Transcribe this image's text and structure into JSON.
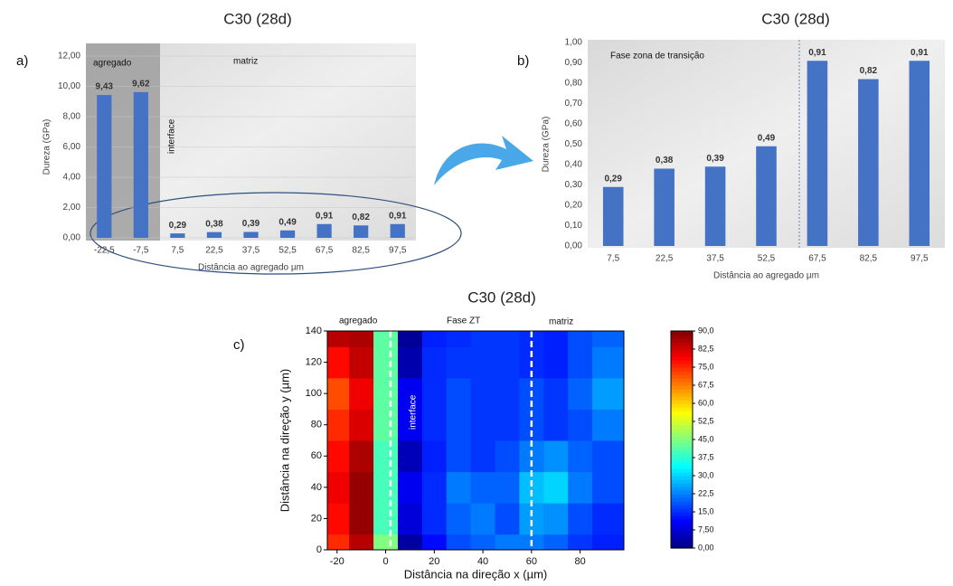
{
  "chart_data": [
    {
      "type": "bar",
      "panel": "a)",
      "title": "C30 (28d)",
      "categories": [
        "-22,5",
        "-7,5",
        "7,5",
        "22,5",
        "37,5",
        "52,5",
        "67,5",
        "82,5",
        "97,5"
      ],
      "values": [
        9.43,
        9.62,
        0.29,
        0.38,
        0.39,
        0.49,
        0.91,
        0.82,
        0.91
      ],
      "value_labels": [
        "9,43",
        "9,62",
        "0,29",
        "0,38",
        "0,39",
        "0,49",
        "0,91",
        "0,82",
        "0,91"
      ],
      "color": "#4472c4",
      "ylim": [
        0,
        12
      ],
      "yticks": [
        {
          "value": 0,
          "label": "0,00"
        },
        {
          "value": 2,
          "label": "2,00"
        },
        {
          "value": 4,
          "label": "4,00"
        },
        {
          "value": 6,
          "label": "6,00"
        },
        {
          "value": 8,
          "label": "8,00"
        },
        {
          "value": 10,
          "label": "10,00"
        },
        {
          "value": 12,
          "label": "12,00"
        }
      ],
      "y_label": "Dureza (GPa)",
      "x_label": "Distância ao agregado µm",
      "labels": [
        "agregado",
        "matriz",
        "interface"
      ],
      "grid": true
    },
    {
      "type": "bar",
      "panel": "b)",
      "title": "C30 (28d)",
      "categories": [
        "7,5",
        "22,5",
        "37,5",
        "52,5",
        "67,5",
        "82,5",
        "97,5"
      ],
      "values": [
        0.29,
        0.38,
        0.39,
        0.49,
        0.91,
        0.82,
        0.91
      ],
      "value_labels": [
        "0,29",
        "0,38",
        "0,39",
        "0,49",
        "0,91",
        "0,82",
        "0,91"
      ],
      "color": "#4472c4",
      "ylim": [
        0,
        1
      ],
      "yticks": [
        {
          "value": 0,
          "label": "0,00"
        },
        {
          "value": 0.1,
          "label": "0,10"
        },
        {
          "value": 0.2,
          "label": "0,20"
        },
        {
          "value": 0.3,
          "label": "0,30"
        },
        {
          "value": 0.4,
          "label": "0,40"
        },
        {
          "value": 0.5,
          "label": "0,50"
        },
        {
          "value": 0.6,
          "label": "0,60"
        },
        {
          "value": 0.7,
          "label": "0,70"
        },
        {
          "value": 0.8,
          "label": "0,80"
        },
        {
          "value": 0.9,
          "label": "0,90"
        },
        {
          "value": 1,
          "label": "1,00"
        }
      ],
      "y_label": "Dureza (GPa)",
      "x_label": "Distância ao agregado µm",
      "labels": [
        "Fase zona de transição"
      ],
      "grid": false
    },
    {
      "type": "heatmap",
      "panel": "c)",
      "title": "C30 (28d)",
      "x": [
        -20,
        -10,
        0,
        10,
        20,
        30,
        40,
        50,
        60,
        70,
        80,
        90
      ],
      "y": [
        0,
        20,
        40,
        60,
        80,
        100,
        120,
        140
      ],
      "z": [
        [
          75,
          85,
          45,
          3,
          12,
          18,
          20,
          22,
          22,
          20,
          16,
          14
        ],
        [
          78,
          88,
          40,
          8,
          15,
          20,
          22,
          18,
          25,
          24,
          18,
          15
        ],
        [
          80,
          88,
          40,
          10,
          15,
          22,
          20,
          20,
          28,
          30,
          22,
          18
        ],
        [
          78,
          86,
          40,
          5,
          14,
          18,
          16,
          18,
          22,
          24,
          20,
          18
        ],
        [
          75,
          82,
          42,
          10,
          15,
          18,
          16,
          16,
          18,
          16,
          18,
          22
        ],
        [
          72,
          80,
          42,
          10,
          15,
          18,
          16,
          16,
          18,
          16,
          20,
          25
        ],
        [
          78,
          84,
          42,
          4,
          15,
          16,
          16,
          16,
          15,
          14,
          18,
          22
        ],
        [
          85,
          86,
          42,
          2,
          14,
          15,
          16,
          16,
          15,
          14,
          18,
          20
        ]
      ],
      "xlim": [
        -24,
        98
      ],
      "ylim": [
        0,
        140
      ],
      "xticks": [
        -20,
        0,
        20,
        40,
        60,
        80
      ],
      "yticks": [
        0,
        20,
        40,
        60,
        80,
        100,
        120,
        140
      ],
      "clim": [
        0,
        90
      ],
      "cticks": [
        {
          "value": 0,
          "label": "0,00"
        },
        {
          "value": 7.5,
          "label": "7,50"
        },
        {
          "value": 15,
          "label": "15,0"
        },
        {
          "value": 22.5,
          "label": "22,5"
        },
        {
          "value": 30,
          "label": "30,0"
        },
        {
          "value": 37.5,
          "label": "37,5"
        },
        {
          "value": 45,
          "label": "45,0"
        },
        {
          "value": 52.5,
          "label": "52,5"
        },
        {
          "value": 60,
          "label": "60,0"
        },
        {
          "value": 67.5,
          "label": "67,5"
        },
        {
          "value": 75,
          "label": "75,0"
        },
        {
          "value": 82.5,
          "label": "82,5"
        },
        {
          "value": 90,
          "label": "90,0"
        }
      ],
      "vlines": [
        2,
        60
      ],
      "x_label": "Distância na direção x (µm)",
      "y_label": "Distância na direção y (µm)",
      "labels": [
        "agregado",
        "Fase ZT",
        "matriz",
        "interface"
      ]
    }
  ]
}
